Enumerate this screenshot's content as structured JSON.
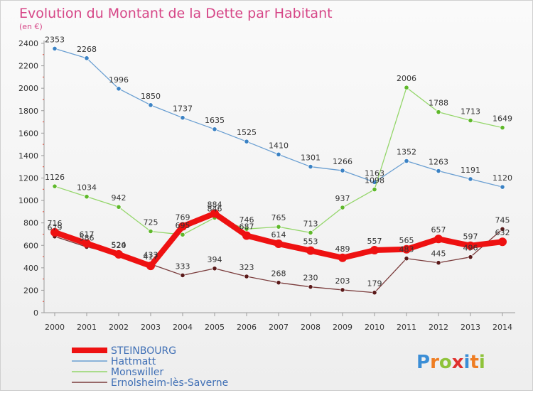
{
  "chart_data": {
    "type": "line",
    "title": "Evolution du Montant de la Dette par Habitant",
    "subtitle": "(en €)",
    "xlabel": "",
    "ylabel": "",
    "ylim": [
      0,
      2400
    ],
    "yticks": [
      0,
      200,
      400,
      600,
      800,
      1000,
      1200,
      1400,
      1600,
      1800,
      2000,
      2200,
      2400
    ],
    "grid": false,
    "legend_position": "bottom-left",
    "categories": [
      "2000",
      "2001",
      "2002",
      "2003",
      "2004",
      "2005",
      "2006",
      "2007",
      "2008",
      "2009",
      "2010",
      "2011",
      "2012",
      "2013",
      "2014"
    ],
    "series": [
      {
        "name": "Hattmatt",
        "color": "#6a9fd2",
        "marker": "#3b82c4",
        "values": [
          2353,
          2268,
          1996,
          1850,
          1737,
          1635,
          1525,
          1410,
          1301,
          1266,
          1163,
          1352,
          1263,
          1191,
          1120
        ]
      },
      {
        "name": "Monswiller",
        "color": "#94d66a",
        "marker": "#5fb82b",
        "values": [
          1126,
          1034,
          942,
          725,
          695,
          846,
          746,
          765,
          713,
          937,
          1098,
          2006,
          1788,
          1713,
          1649
        ]
      },
      {
        "name": "Ernolsheim-lès-Saverne",
        "color": "#7a3b3b",
        "marker": "#5a1a1a",
        "values": [
          679,
          586,
          524,
          433,
          333,
          394,
          323,
          268,
          230,
          203,
          179,
          483,
          445,
          496,
          745
        ]
      },
      {
        "name": "STEINBOURG",
        "color": "#ee1111",
        "marker": "#ee1111",
        "values": [
          716,
          617,
          520,
          417,
          769,
          884,
          687,
          614,
          553,
          489,
          557,
          565,
          657,
          597,
          632
        ]
      }
    ]
  },
  "legend_order": [
    "STEINBOURG",
    "Hattmatt",
    "Monswiller",
    "Ernolsheim-lès-Saverne"
  ],
  "logo": {
    "text": "Proxiti"
  }
}
